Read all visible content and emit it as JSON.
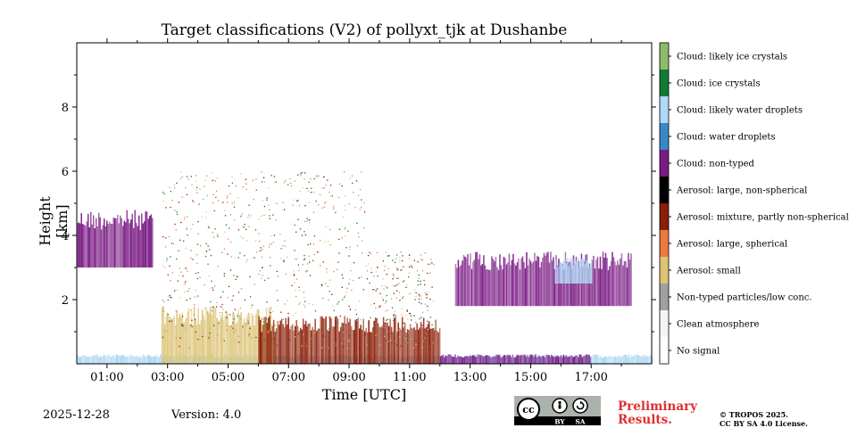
{
  "chart_data": {
    "type": "heatmap",
    "title": "Target classifications (V2) of pollyxt_tjk at Dushanbe",
    "xlabel": "Time [UTC]",
    "ylabel": "Height [km]",
    "xlim_hours": [
      0,
      19
    ],
    "ylim_km": [
      0,
      10
    ],
    "x_ticks": [
      {
        "h": 1,
        "label": "01:00"
      },
      {
        "h": 3,
        "label": "03:00"
      },
      {
        "h": 5,
        "label": "05:00"
      },
      {
        "h": 7,
        "label": "07:00"
      },
      {
        "h": 9,
        "label": "09:00"
      },
      {
        "h": 11,
        "label": "11:00"
      },
      {
        "h": 13,
        "label": "13:00"
      },
      {
        "h": 15,
        "label": "15:00"
      },
      {
        "h": 17,
        "label": "17:00"
      }
    ],
    "y_ticks": [
      {
        "km": 2,
        "label": "2"
      },
      {
        "km": 4,
        "label": "4"
      },
      {
        "km": 6,
        "label": "6"
      },
      {
        "km": 8,
        "label": "8"
      }
    ],
    "legend": [
      {
        "label": "No signal",
        "color": "#ffffff"
      },
      {
        "label": "Clean atmosphere",
        "color": "#f5f5f5"
      },
      {
        "label": "Non-typed particles/low conc.",
        "color": "#a0a0a0"
      },
      {
        "label": "Aerosol: small",
        "color": "#dcc476"
      },
      {
        "label": "Aerosol: large, spherical",
        "color": "#ea7a3e"
      },
      {
        "label": "Aerosol: mixture, partly non-spherical",
        "color": "#8b1e06"
      },
      {
        "label": "Aerosol: large, non-spherical",
        "color": "#000000"
      },
      {
        "label": "Cloud: non-typed",
        "color": "#7a1a84"
      },
      {
        "label": "Cloud: water droplets",
        "color": "#3888c8"
      },
      {
        "label": "Cloud: likely water droplets",
        "color": "#b0d8f4"
      },
      {
        "label": "Cloud: ice crystals",
        "color": "#137a36"
      },
      {
        "label": "Cloud: likely ice crystals",
        "color": "#8dbb6a"
      }
    ],
    "regions": [
      {
        "class": "Cloud: non-typed",
        "t0": 0.0,
        "t1": 2.5,
        "h0": 3.0,
        "h1": 4.8,
        "note": "early cloud layer"
      },
      {
        "class": "Cloud: likely water droplets",
        "t0": 0.0,
        "t1": 19.0,
        "h0": 0.0,
        "h1": 0.3,
        "note": "near-surface band"
      },
      {
        "class": "Aerosol: small",
        "t0": 2.8,
        "t1": 6.5,
        "h0": 0.0,
        "h1": 1.8
      },
      {
        "class": "Aerosol: mixture, partly non-spherical",
        "t0": 6.0,
        "t1": 12.0,
        "h0": 0.0,
        "h1": 1.5
      },
      {
        "class": "Cloud: non-typed",
        "t0": 12.0,
        "t1": 17.0,
        "h0": 0.0,
        "h1": 0.3,
        "note": "surface band"
      },
      {
        "class": "Cloud: non-typed",
        "t0": 12.5,
        "t1": 18.3,
        "h0": 1.8,
        "h1": 3.5,
        "note": "afternoon cloud"
      },
      {
        "class": "Cloud: likely water droplets",
        "t0": 15.8,
        "t1": 17.0,
        "h0": 2.5,
        "h1": 3.3
      }
    ]
  },
  "footer": {
    "date": "2025-12-28",
    "version": "Version: 4.0",
    "preliminary_line1": "Preliminary",
    "preliminary_line2": "Results.",
    "copyright_line1": "© TROPOS 2025.",
    "copyright_line2": "CC BY SA 4.0 License.",
    "cc_badge": {
      "cc": "cc",
      "by": "BY",
      "sa": "SA"
    }
  }
}
